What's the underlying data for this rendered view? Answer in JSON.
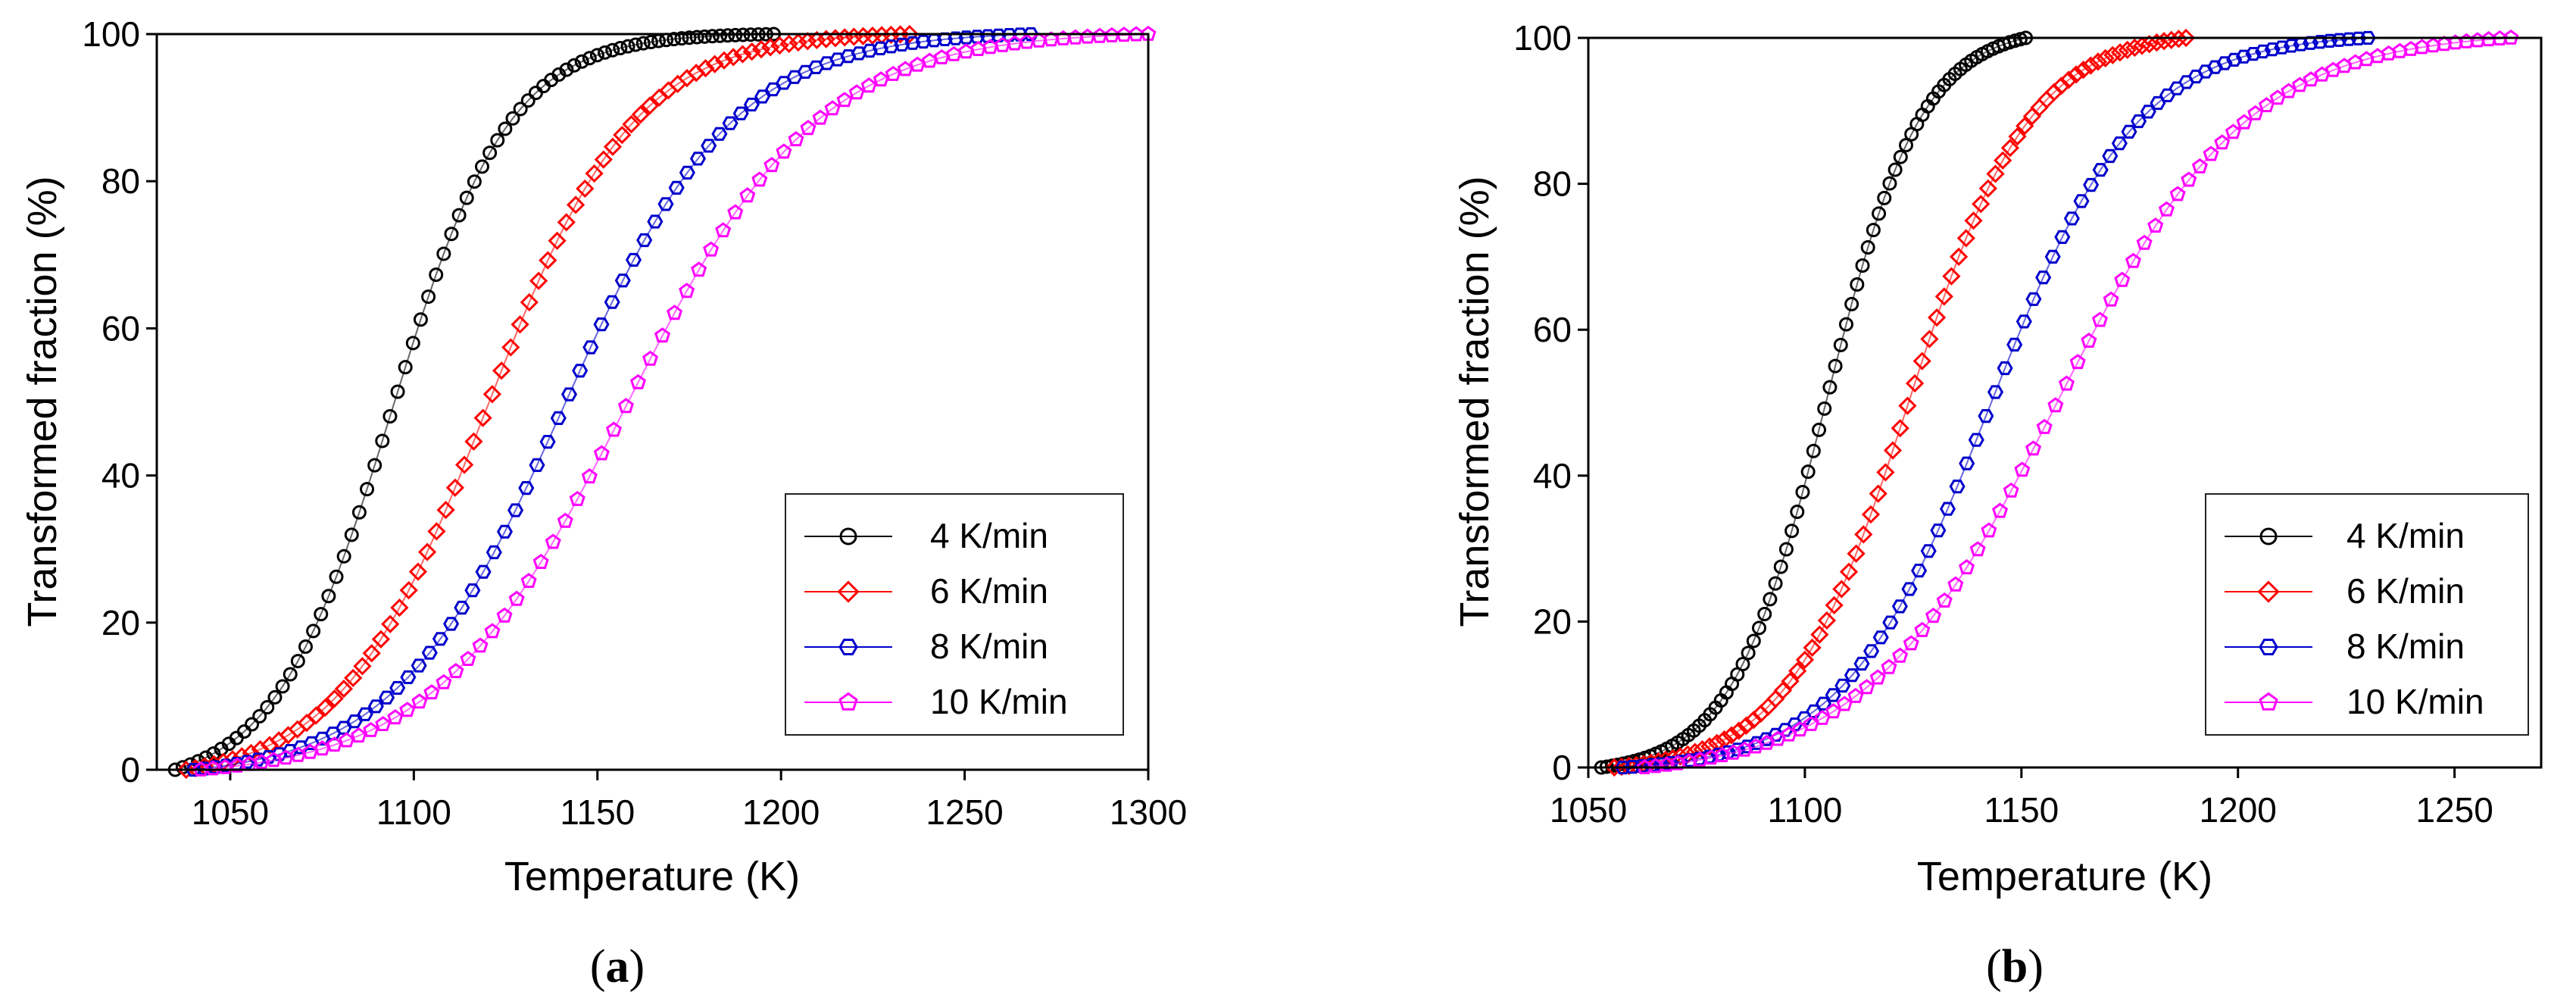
{
  "chart_data": [
    {
      "panel": "(a)",
      "panel_letter": "a",
      "type": "scatter",
      "xlabel": "Temperature (K)",
      "ylabel": "Transformed fraction (%)",
      "xlim": [
        1030,
        1300
      ],
      "ylim": [
        0,
        100
      ],
      "xticks": [
        1050,
        1100,
        1150,
        1200,
        1250,
        1300
      ],
      "yticks": [
        0,
        20,
        40,
        60,
        80,
        100
      ],
      "legend_position": "bottom-right",
      "series": [
        {
          "name": "4 K/min",
          "color": "#000000",
          "marker": "circle",
          "t_start": 1035,
          "t_end": 1198,
          "t_mid": 1094,
          "width": 16
        },
        {
          "name": "6 K/min",
          "color": "#ff0000",
          "marker": "diamond",
          "t_start": 1038,
          "t_end": 1235,
          "t_mid": 1120,
          "width": 20
        },
        {
          "name": "8 K/min",
          "color": "#0000cc",
          "marker": "hexagon",
          "t_start": 1040,
          "t_end": 1268,
          "t_mid": 1141,
          "width": 23
        },
        {
          "name": "10 K/min",
          "color": "#ff00ff",
          "marker": "pentagon",
          "t_start": 1042,
          "t_end": 1300,
          "t_mid": 1158,
          "width": 26
        }
      ]
    },
    {
      "panel": "(b)",
      "panel_letter": "b",
      "type": "scatter",
      "xlabel": "Temperature (K)",
      "ylabel": "Transformed fraction (%)",
      "xlim": [
        1050,
        1270
      ],
      "ylim": [
        0,
        100
      ],
      "xticks": [
        1050,
        1100,
        1150,
        1200,
        1250
      ],
      "yticks": [
        0,
        20,
        40,
        60,
        80,
        100
      ],
      "legend_position": "bottom-right",
      "series": [
        {
          "name": "4 K/min",
          "color": "#000000",
          "marker": "circle",
          "t_start": 1053,
          "t_end": 1151,
          "t_mid": 1105,
          "width": 11
        },
        {
          "name": "6 K/min",
          "color": "#ff0000",
          "marker": "diamond",
          "t_start": 1056,
          "t_end": 1188,
          "t_mid": 1124,
          "width": 14
        },
        {
          "name": "8 K/min",
          "color": "#0000cc",
          "marker": "hexagon",
          "t_start": 1058,
          "t_end": 1230,
          "t_mid": 1143,
          "width": 17
        },
        {
          "name": "10 K/min",
          "color": "#ff00ff",
          "marker": "pentagon",
          "t_start": 1063,
          "t_end": 1263,
          "t_mid": 1158,
          "width": 22
        }
      ]
    }
  ]
}
